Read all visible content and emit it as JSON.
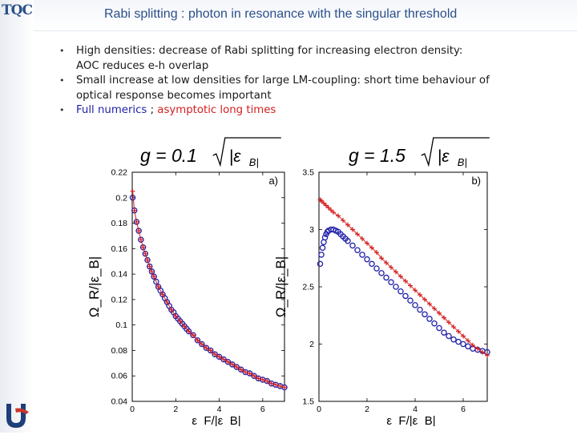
{
  "slide": {
    "logo_text": "TQC",
    "title": "Rabi splitting : photon in resonance with the singular threshold",
    "bullets": [
      {
        "line1": "High densities: decrease of Rabi splitting  for increasing electron density:",
        "line2": "AOC reduces e-h overlap"
      },
      {
        "line1": "Small increase at low densities for large LM-coupling: short time behaviour of",
        "line2": "optical response becomes important"
      }
    ],
    "legend_line": {
      "full": "Full numerics",
      "sep": " ; ",
      "asym": "asymptotic long times"
    }
  },
  "colors": {
    "title": "#2b4f8a",
    "full_numerics": "#1f1fa8",
    "asymptotic": "#d42020"
  },
  "chart_data": [
    {
      "type": "scatter",
      "panel_label": "a)",
      "title": "g = 0.1√|ε_B|",
      "title_g": "g = 0.1",
      "title_eps": "|ε",
      "title_sub": "B",
      "ylabel": "Ω_R/|ε_B|",
      "xlabel": "ε_F/|ε_B|",
      "xlim": [
        0,
        7
      ],
      "ylim": [
        0.04,
        0.22
      ],
      "xticks": [
        "0",
        "2",
        "4",
        "6"
      ],
      "yticks": [
        "0.04",
        "0.06",
        "0.08",
        "0.1",
        "0.12",
        "0.14",
        "0.16",
        "0.18",
        "0.2",
        "0.22"
      ],
      "series": [
        {
          "name": "Full numerics",
          "marker": "circle",
          "color": "#1f1fa8",
          "x": [
            0.02,
            0.1,
            0.2,
            0.3,
            0.4,
            0.5,
            0.6,
            0.7,
            0.8,
            0.9,
            1.0,
            1.1,
            1.2,
            1.3,
            1.4,
            1.5,
            1.6,
            1.7,
            1.8,
            1.9,
            2.0,
            2.1,
            2.2,
            2.3,
            2.4,
            2.5,
            2.6,
            2.8,
            3.0,
            3.2,
            3.4,
            3.6,
            3.8,
            4.0,
            4.2,
            4.4,
            4.6,
            4.8,
            5.0,
            5.2,
            5.4,
            5.6,
            5.8,
            6.0,
            6.2,
            6.4,
            6.6,
            6.8,
            7.0
          ],
          "y": [
            0.2,
            0.19,
            0.181,
            0.174,
            0.167,
            0.161,
            0.156,
            0.151,
            0.146,
            0.142,
            0.138,
            0.134,
            0.13,
            0.127,
            0.124,
            0.121,
            0.118,
            0.115,
            0.112,
            0.11,
            0.107,
            0.105,
            0.103,
            0.101,
            0.099,
            0.097,
            0.095,
            0.092,
            0.088,
            0.085,
            0.082,
            0.08,
            0.077,
            0.075,
            0.073,
            0.071,
            0.069,
            0.067,
            0.065,
            0.063,
            0.062,
            0.06,
            0.058,
            0.057,
            0.056,
            0.054,
            0.053,
            0.052,
            0.051
          ]
        },
        {
          "name": "asymptotic long times",
          "marker": "plus",
          "color": "#d42020",
          "x": [
            0.02,
            0.1,
            0.2,
            0.3,
            0.4,
            0.5,
            0.6,
            0.7,
            0.8,
            0.9,
            1.0,
            1.2,
            1.4,
            1.6,
            1.8,
            2.0,
            2.2,
            2.4,
            2.6,
            2.8,
            3.0,
            3.2,
            3.4,
            3.6,
            3.8,
            4.0,
            4.2,
            4.4,
            4.6,
            4.8,
            5.0,
            5.2,
            5.4,
            5.6,
            5.8,
            6.0,
            6.2,
            6.4,
            6.6,
            6.8,
            7.0
          ],
          "y": [
            0.205,
            0.19,
            0.181,
            0.174,
            0.167,
            0.161,
            0.156,
            0.151,
            0.146,
            0.142,
            0.138,
            0.13,
            0.124,
            0.118,
            0.112,
            0.107,
            0.103,
            0.099,
            0.095,
            0.092,
            0.088,
            0.085,
            0.082,
            0.08,
            0.077,
            0.075,
            0.073,
            0.071,
            0.069,
            0.067,
            0.065,
            0.063,
            0.062,
            0.06,
            0.058,
            0.057,
            0.056,
            0.054,
            0.053,
            0.052,
            0.051
          ]
        }
      ]
    },
    {
      "type": "scatter",
      "panel_label": "b)",
      "title": "g = 1.5√|ε_B|",
      "title_g": "g = 1.5",
      "title_eps": "|ε",
      "title_sub": "B",
      "ylabel": "Ω_R/|ε_B|",
      "xlabel": "ε_F/|ε_B|",
      "xlim": [
        0,
        7
      ],
      "ylim": [
        1.5,
        3.5
      ],
      "xticks": [
        "0",
        "2",
        "4",
        "6"
      ],
      "yticks": [
        "1.5",
        "2",
        "2.5",
        "3",
        "3.5"
      ],
      "series": [
        {
          "name": "Full numerics",
          "marker": "circle",
          "color": "#1f1fa8",
          "x": [
            0.05,
            0.1,
            0.15,
            0.2,
            0.25,
            0.3,
            0.35,
            0.4,
            0.5,
            0.6,
            0.7,
            0.8,
            0.9,
            1.0,
            1.1,
            1.2,
            1.4,
            1.6,
            1.8,
            2.0,
            2.2,
            2.4,
            2.6,
            2.8,
            3.0,
            3.2,
            3.4,
            3.6,
            3.8,
            4.0,
            4.2,
            4.4,
            4.6,
            4.8,
            5.0,
            5.2,
            5.4,
            5.6,
            5.8,
            6.0,
            6.2,
            6.4,
            6.6,
            6.8,
            7.0
          ],
          "y": [
            2.7,
            2.78,
            2.84,
            2.89,
            2.93,
            2.96,
            2.98,
            2.99,
            3.0,
            3.0,
            2.99,
            2.98,
            2.96,
            2.94,
            2.92,
            2.9,
            2.86,
            2.82,
            2.78,
            2.74,
            2.7,
            2.66,
            2.62,
            2.58,
            2.54,
            2.5,
            2.46,
            2.42,
            2.38,
            2.34,
            2.3,
            2.26,
            2.22,
            2.18,
            2.14,
            2.1,
            2.07,
            2.04,
            2.02,
            2.0,
            1.98,
            1.96,
            1.95,
            1.94,
            1.93
          ]
        },
        {
          "name": "asymptotic long times",
          "marker": "plus",
          "color": "#d42020",
          "x": [
            0.05,
            0.1,
            0.2,
            0.3,
            0.4,
            0.5,
            0.6,
            0.8,
            1.0,
            1.2,
            1.4,
            1.6,
            1.8,
            2.0,
            2.2,
            2.4,
            2.6,
            2.8,
            3.0,
            3.2,
            3.4,
            3.6,
            3.8,
            4.0,
            4.2,
            4.4,
            4.6,
            4.8,
            5.0,
            5.2,
            5.4,
            5.6,
            5.8,
            6.0,
            6.2,
            6.4,
            6.6,
            6.8,
            7.0
          ],
          "y": [
            3.26,
            3.25,
            3.23,
            3.21,
            3.19,
            3.17,
            3.15,
            3.12,
            3.08,
            3.04,
            3.0,
            2.96,
            2.92,
            2.88,
            2.84,
            2.8,
            2.75,
            2.71,
            2.67,
            2.63,
            2.59,
            2.55,
            2.51,
            2.47,
            2.43,
            2.39,
            2.35,
            2.31,
            2.27,
            2.23,
            2.19,
            2.15,
            2.11,
            2.07,
            2.03,
            1.99,
            1.96,
            1.93,
            1.9
          ]
        }
      ]
    }
  ]
}
